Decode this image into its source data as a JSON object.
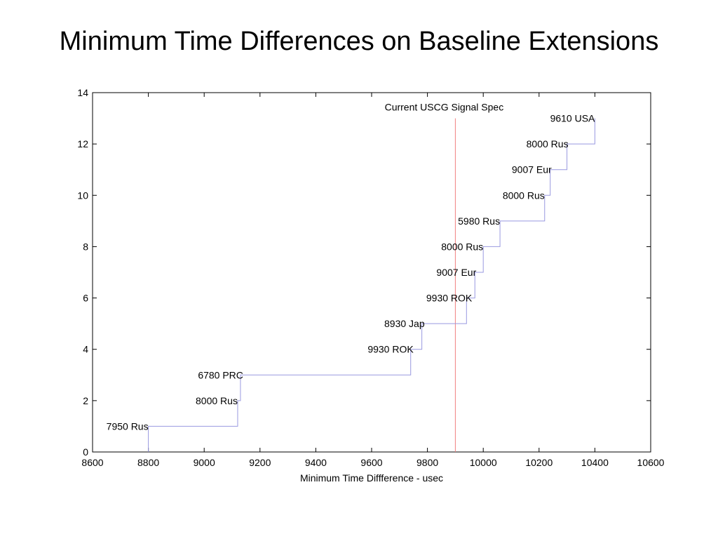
{
  "slide": {
    "title": "Minimum Time Differences on Baseline Extensions"
  },
  "chart_data": {
    "type": "line",
    "title": "",
    "xlabel": "Minimum Time Diffference - usec",
    "ylabel": "",
    "xlim": [
      8600,
      10600
    ],
    "ylim": [
      0,
      14
    ],
    "xticks": [
      8600,
      8800,
      9000,
      9200,
      9400,
      9600,
      9800,
      10000,
      10200,
      10400,
      10600
    ],
    "yticks": [
      0,
      2,
      4,
      6,
      8,
      10,
      12,
      14
    ],
    "grid": false,
    "colors": {
      "series": "#9999e0",
      "reference": "#f08080",
      "axis": "#000000"
    },
    "series": [
      {
        "points": [
          [
            8800,
            0
          ],
          [
            8800,
            1
          ],
          [
            9120,
            1
          ],
          [
            9120,
            2
          ],
          [
            9130,
            2
          ],
          [
            9130,
            3
          ],
          [
            9740,
            3
          ],
          [
            9740,
            4
          ],
          [
            9780,
            4
          ],
          [
            9780,
            5
          ],
          [
            9940,
            5
          ],
          [
            9940,
            6
          ],
          [
            9970,
            6
          ],
          [
            9970,
            7
          ],
          [
            10000,
            7
          ],
          [
            10000,
            8
          ],
          [
            10060,
            8
          ],
          [
            10060,
            9
          ],
          [
            10220,
            9
          ],
          [
            10220,
            10
          ],
          [
            10240,
            10
          ],
          [
            10240,
            11
          ],
          [
            10300,
            11
          ],
          [
            10300,
            12
          ],
          [
            10400,
            12
          ],
          [
            10400,
            13
          ]
        ]
      }
    ],
    "reference_line": {
      "x": 9900,
      "y_top": 13,
      "label": "Current USCG Signal Spec"
    },
    "annotations": [
      {
        "text": "7950 Rus",
        "x": 8800,
        "y": 1
      },
      {
        "text": "8000 Rus",
        "x": 9120,
        "y": 2
      },
      {
        "text": "6780 PRC",
        "x": 9140,
        "y": 3
      },
      {
        "text": "9930 ROK",
        "x": 9750,
        "y": 4
      },
      {
        "text": "8930 Jap",
        "x": 9790,
        "y": 5
      },
      {
        "text": "9930 ROK",
        "x": 9960,
        "y": 6
      },
      {
        "text": "9007 Eur",
        "x": 9975,
        "y": 7
      },
      {
        "text": "8000 Rus",
        "x": 10000,
        "y": 8
      },
      {
        "text": "5980 Rus",
        "x": 10060,
        "y": 9
      },
      {
        "text": "8000 Rus",
        "x": 10220,
        "y": 10
      },
      {
        "text": "9007 Eur",
        "x": 10245,
        "y": 11
      },
      {
        "text": "8000 Rus",
        "x": 10305,
        "y": 12
      },
      {
        "text": "9610 USA",
        "x": 10400,
        "y": 13
      }
    ]
  }
}
